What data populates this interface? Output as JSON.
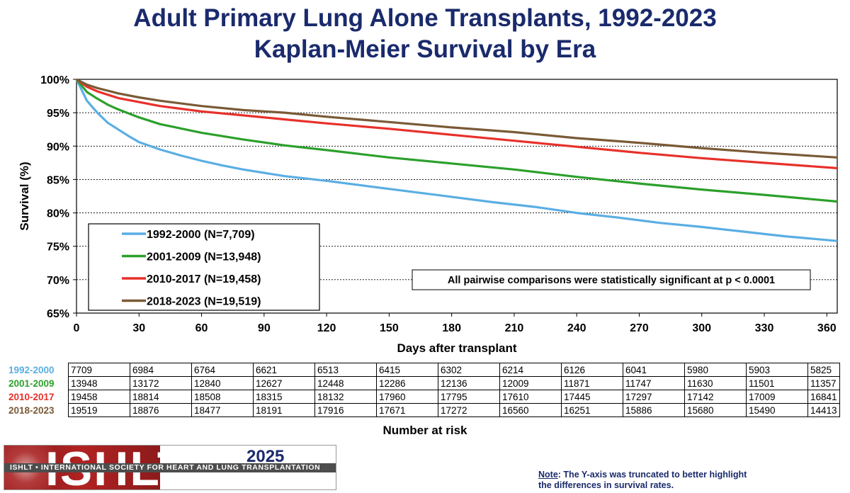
{
  "title_line1": "Adult Primary Lung Alone Transplants, 1992-2023",
  "title_line2": "Kaplan-Meier Survival by Era",
  "chart_data": {
    "type": "line",
    "xlabel": "Days after transplant",
    "ylabel": "Survival (%)",
    "xlim": [
      0,
      365
    ],
    "ylim": [
      65,
      100
    ],
    "x_ticks": [
      0,
      30,
      60,
      90,
      120,
      150,
      180,
      210,
      240,
      270,
      300,
      330,
      360
    ],
    "y_ticks": [
      "100%",
      "95%",
      "90%",
      "85%",
      "80%",
      "75%",
      "70%",
      "65%"
    ],
    "grid": "horizontal dashed",
    "legend_position": "bottom-left",
    "annotation": "All pairwise comparisons were statistically significant at p < 0.0001",
    "series": [
      {
        "name": "1992-2000 (N=7,709)",
        "color": "#5aaee3",
        "x": [
          0,
          5,
          10,
          15,
          20,
          25,
          30,
          40,
          50,
          60,
          70,
          80,
          90,
          100,
          120,
          140,
          160,
          180,
          200,
          220,
          240,
          260,
          280,
          300,
          320,
          340,
          365
        ],
        "y": [
          100,
          96.8,
          95,
          93.5,
          92.5,
          91.5,
          90.6,
          89.5,
          88.6,
          87.8,
          87.1,
          86.5,
          86.0,
          85.5,
          84.8,
          84.0,
          83.2,
          82.4,
          81.6,
          80.9,
          80.0,
          79.3,
          78.5,
          77.9,
          77.2,
          76.5,
          75.8
        ]
      },
      {
        "name": "2001-2009 (N=13,948)",
        "color": "#2ca02c",
        "x": [
          0,
          5,
          10,
          15,
          20,
          30,
          40,
          60,
          80,
          100,
          120,
          150,
          180,
          210,
          240,
          270,
          300,
          330,
          365
        ],
        "y": [
          100,
          98.1,
          97.1,
          96.2,
          95.5,
          94.3,
          93.3,
          92.0,
          91.0,
          90.1,
          89.4,
          88.3,
          87.4,
          86.5,
          85.4,
          84.4,
          83.5,
          82.7,
          81.7
        ]
      },
      {
        "name": "2010-2017 (N=19,458)",
        "color": "#e8302a",
        "x": [
          0,
          5,
          10,
          15,
          20,
          30,
          40,
          60,
          80,
          100,
          120,
          150,
          180,
          210,
          240,
          270,
          300,
          330,
          365
        ],
        "y": [
          100,
          98.9,
          98.2,
          97.7,
          97.2,
          96.6,
          96.0,
          95.2,
          94.6,
          94.0,
          93.4,
          92.6,
          91.7,
          90.8,
          89.9,
          89.0,
          88.2,
          87.5,
          86.7
        ]
      },
      {
        "name": "2018-2023 (N=19,519)",
        "color": "#7a5a36",
        "x": [
          0,
          5,
          10,
          15,
          20,
          30,
          40,
          60,
          80,
          100,
          120,
          150,
          180,
          210,
          240,
          270,
          300,
          330,
          365
        ],
        "y": [
          100,
          99.2,
          98.7,
          98.3,
          97.9,
          97.3,
          96.8,
          96.0,
          95.4,
          95.0,
          94.4,
          93.6,
          92.8,
          92.1,
          91.2,
          90.5,
          89.7,
          89.0,
          88.3
        ]
      }
    ]
  },
  "risk_table": {
    "label": "Number at risk",
    "rows": [
      {
        "era": "1992-2000",
        "color": "#5aaee3",
        "values": [
          "7709",
          "6984",
          "6764",
          "6621",
          "6513",
          "6415",
          "6302",
          "6214",
          "6126",
          "6041",
          "5980",
          "5903",
          "5825"
        ]
      },
      {
        "era": "2001-2009",
        "color": "#2ca02c",
        "values": [
          "13948",
          "13172",
          "12840",
          "12627",
          "12448",
          "12286",
          "12136",
          "12009",
          "11871",
          "11747",
          "11630",
          "11501",
          "11357"
        ]
      },
      {
        "era": "2010-2017",
        "color": "#e8302a",
        "values": [
          "19458",
          "18814",
          "18508",
          "18315",
          "18132",
          "17960",
          "17795",
          "17610",
          "17445",
          "17297",
          "17142",
          "17009",
          "16841"
        ]
      },
      {
        "era": "2018-2023",
        "color": "#7a5a36",
        "values": [
          "19519",
          "18876",
          "18477",
          "18191",
          "17916",
          "17671",
          "17272",
          "16560",
          "16251",
          "15886",
          "15680",
          "15490",
          "14413"
        ]
      }
    ]
  },
  "logo": {
    "word": "ISHLT",
    "strip": "ISHLT • INTERNATIONAL SOCIETY FOR HEART AND LUNG TRANSPLANTATION",
    "year": "2025"
  },
  "note": {
    "prefix": "Note",
    "text": ": The Y-axis was truncated to better highlight the differences in survival rates."
  }
}
